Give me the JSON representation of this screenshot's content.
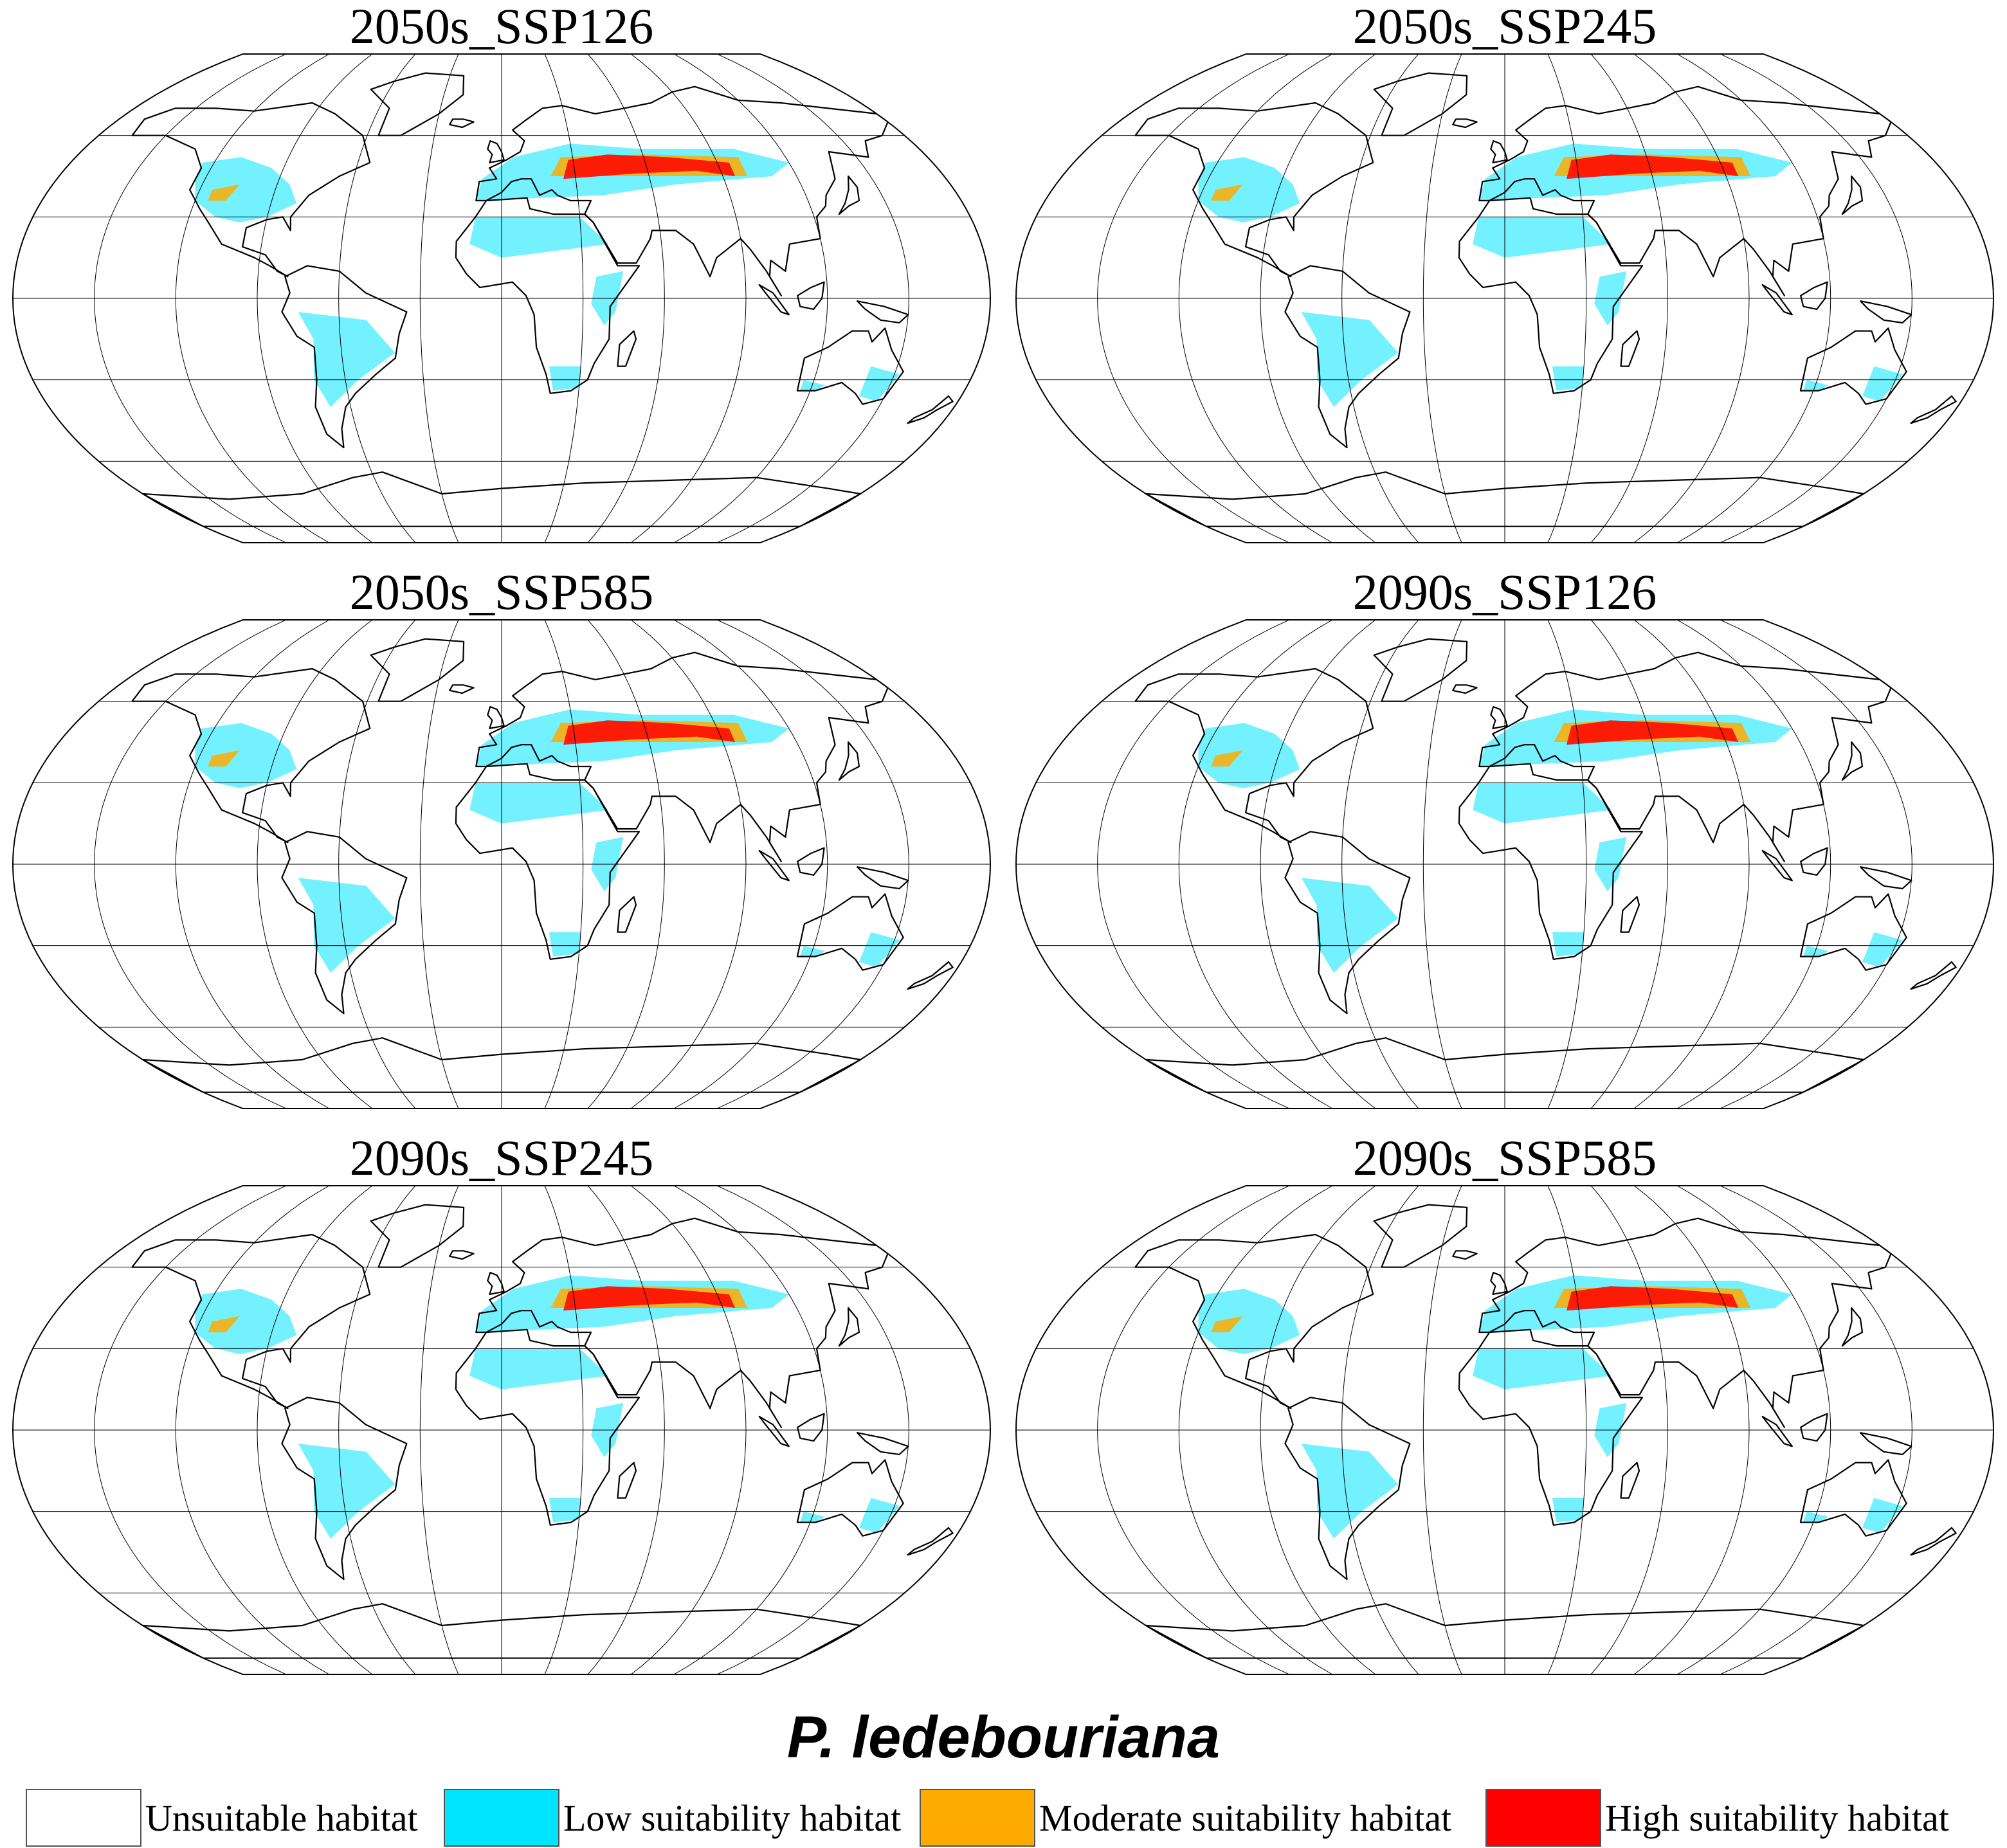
{
  "panels": [
    {
      "title": "2050s_SSP126"
    },
    {
      "title": "2050s_SSP245"
    },
    {
      "title": "2050s_SSP585"
    },
    {
      "title": "2090s_SSP126"
    },
    {
      "title": "2090s_SSP245"
    },
    {
      "title": "2090s_SSP585"
    }
  ],
  "species": "P. ledebouriana",
  "legend": [
    {
      "label": "Unsuitable habitat",
      "color": "#ffffff"
    },
    {
      "label": "Low suitability habitat",
      "color": "#00e5ff"
    },
    {
      "label": "Moderate suitability habitat",
      "color": "#ffaa00"
    },
    {
      "label": "High suitability habitat",
      "color": "#ff0000"
    }
  ],
  "colors": {
    "graticule": "#000000",
    "coastline": "#000000",
    "low": "#00e5ff",
    "moderate": "#ffaa00",
    "high": "#ff0000"
  }
}
